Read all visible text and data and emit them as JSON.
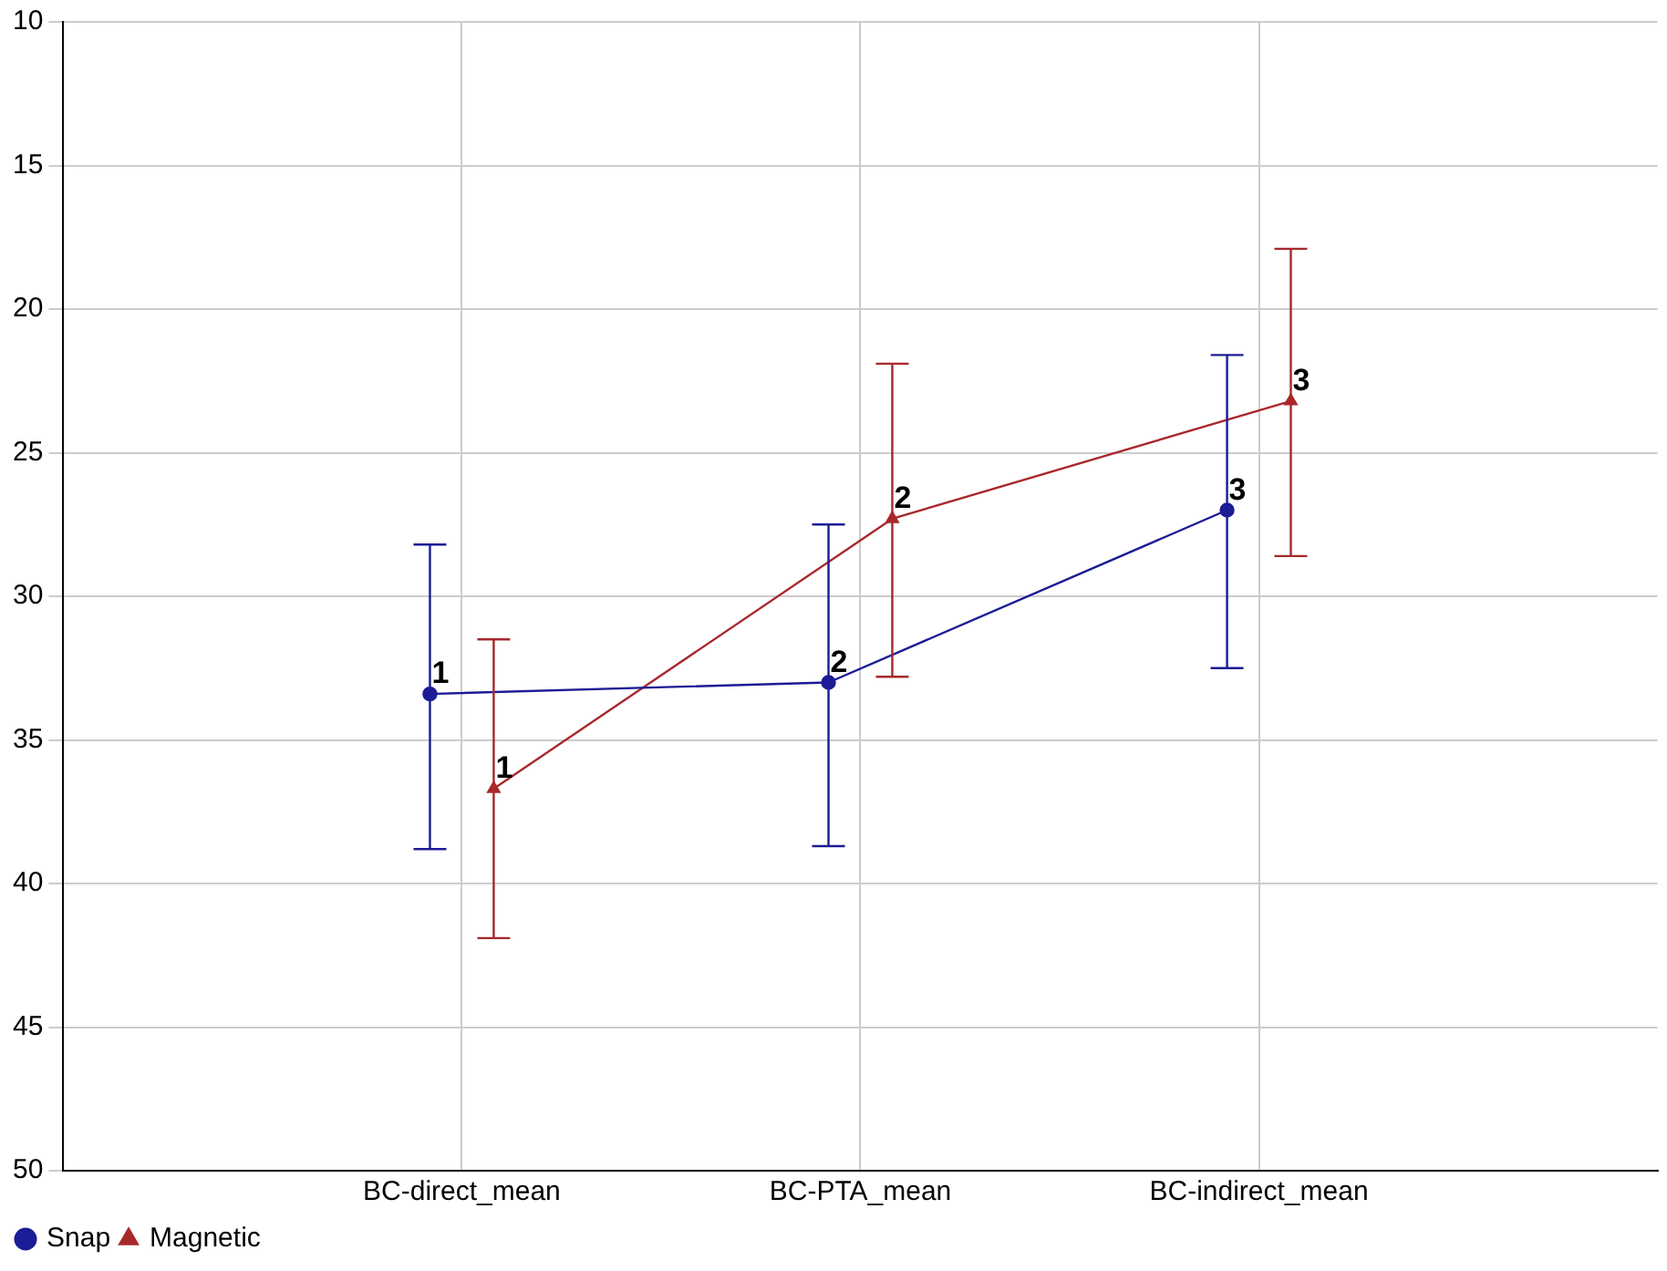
{
  "chart_data": {
    "type": "line",
    "categories": [
      "BC-direct_mean",
      "BC-PTA_mean",
      "BC-indirect_mean"
    ],
    "ylim": [
      50,
      10
    ],
    "yticks": [
      10,
      15,
      20,
      25,
      30,
      35,
      40,
      45,
      50
    ],
    "grid": true,
    "legend": "bottom left",
    "line_style": "solid",
    "annotations": [
      "1",
      "2",
      "3",
      "1",
      "2",
      "3"
    ],
    "series": [
      {
        "name": "Snap",
        "color": "#1c1c96",
        "marker": "circle",
        "values": [
          33.4,
          33.0,
          27.0
        ],
        "errors": [
          [
            28.2,
            38.8
          ],
          [
            27.5,
            38.7
          ],
          [
            21.6,
            32.5
          ]
        ]
      },
      {
        "name": "Magnetic",
        "color": "#a8282c",
        "marker": "triangle",
        "values": [
          36.7,
          27.3,
          23.2
        ],
        "errors": [
          [
            31.5,
            41.9
          ],
          [
            21.9,
            32.8
          ],
          [
            17.9,
            28.6
          ]
        ]
      }
    ]
  }
}
